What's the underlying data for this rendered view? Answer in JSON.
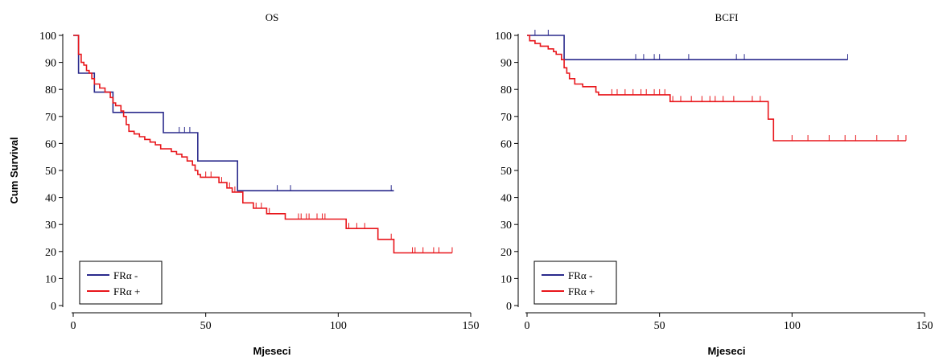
{
  "chart_data": [
    {
      "type": "line",
      "title": "OS",
      "xlabel": "Mjeseci",
      "ylabel": "Cum Survival",
      "xlim": [
        0,
        150
      ],
      "ylim": [
        0,
        100
      ],
      "x_ticks": [
        "0",
        "50",
        "100",
        "150"
      ],
      "y_ticks": [
        "0",
        "10",
        "20",
        "30",
        "40",
        "50",
        "60",
        "70",
        "80",
        "90",
        "100"
      ],
      "legend_position": "bottom-left",
      "series": [
        {
          "name": "FRα -",
          "color": "#2a2a8c",
          "points": [
            [
              0,
              100
            ],
            [
              2,
              100
            ],
            [
              2,
              86
            ],
            [
              8,
              86
            ],
            [
              8,
              79
            ],
            [
              15,
              79
            ],
            [
              15,
              71.5
            ],
            [
              34,
              71.5
            ],
            [
              34,
              64
            ],
            [
              47,
              64
            ],
            [
              47,
              53.5
            ],
            [
              62,
              53.5
            ],
            [
              62,
              42.5
            ],
            [
              121,
              42.5
            ]
          ],
          "censors": [
            [
              40,
              64
            ],
            [
              42,
              64
            ],
            [
              44,
              64
            ],
            [
              77,
              42.5
            ],
            [
              82,
              42.5
            ],
            [
              120,
              42.5
            ]
          ]
        },
        {
          "name": "FRα +",
          "color": "#e8161b",
          "points": [
            [
              0,
              100
            ],
            [
              2,
              100
            ],
            [
              2,
              93
            ],
            [
              3,
              93
            ],
            [
              3,
              90
            ],
            [
              4,
              90
            ],
            [
              4,
              89
            ],
            [
              5,
              89
            ],
            [
              5,
              87
            ],
            [
              6,
              87
            ],
            [
              6,
              86
            ],
            [
              7,
              86
            ],
            [
              7,
              84
            ],
            [
              8,
              84
            ],
            [
              8,
              82
            ],
            [
              10,
              82
            ],
            [
              10,
              80.5
            ],
            [
              12,
              80.5
            ],
            [
              12,
              79
            ],
            [
              14,
              79
            ],
            [
              14,
              77
            ],
            [
              15,
              77
            ],
            [
              15,
              75
            ],
            [
              16,
              75
            ],
            [
              16,
              74
            ],
            [
              18,
              74
            ],
            [
              18,
              72
            ],
            [
              19,
              72
            ],
            [
              19,
              70
            ],
            [
              20,
              70
            ],
            [
              20,
              67
            ],
            [
              21,
              67
            ],
            [
              21,
              64.5
            ],
            [
              23,
              64.5
            ],
            [
              23,
              63.5
            ],
            [
              25,
              63.5
            ],
            [
              25,
              62.5
            ],
            [
              27,
              62.5
            ],
            [
              27,
              61.5
            ],
            [
              29,
              61.5
            ],
            [
              29,
              60.5
            ],
            [
              31,
              60.5
            ],
            [
              31,
              59.5
            ],
            [
              33,
              59.5
            ],
            [
              33,
              58
            ],
            [
              37,
              58
            ],
            [
              37,
              57
            ],
            [
              39,
              57
            ],
            [
              39,
              56
            ],
            [
              41,
              56
            ],
            [
              41,
              55
            ],
            [
              43,
              55
            ],
            [
              43,
              53.5
            ],
            [
              45,
              53.5
            ],
            [
              45,
              52
            ],
            [
              46,
              52
            ],
            [
              46,
              50
            ],
            [
              47,
              50
            ],
            [
              47,
              48.5
            ],
            [
              48,
              48.5
            ],
            [
              48,
              47.5
            ],
            [
              55,
              47.5
            ],
            [
              55,
              45.5
            ],
            [
              58,
              45.5
            ],
            [
              58,
              43.5
            ],
            [
              60,
              43.5
            ],
            [
              60,
              42
            ],
            [
              64,
              42
            ],
            [
              64,
              38
            ],
            [
              68,
              38
            ],
            [
              68,
              36
            ],
            [
              73,
              36
            ],
            [
              73,
              34
            ],
            [
              80,
              34
            ],
            [
              80,
              32
            ],
            [
              103,
              32
            ],
            [
              103,
              28.5
            ],
            [
              115,
              28.5
            ],
            [
              115,
              24.5
            ],
            [
              121,
              24.5
            ],
            [
              121,
              19.5
            ],
            [
              143,
              19.5
            ]
          ],
          "censors": [
            [
              50,
              47.5
            ],
            [
              52,
              47.5
            ],
            [
              56,
              45.5
            ],
            [
              59,
              43.5
            ],
            [
              61,
              42
            ],
            [
              69,
              36
            ],
            [
              71,
              36
            ],
            [
              74,
              34
            ],
            [
              85,
              32
            ],
            [
              86,
              32
            ],
            [
              88,
              32
            ],
            [
              89,
              32
            ],
            [
              92,
              32
            ],
            [
              94,
              32
            ],
            [
              95,
              32
            ],
            [
              104,
              28.5
            ],
            [
              107,
              28.5
            ],
            [
              110,
              28.5
            ],
            [
              120,
              24.5
            ],
            [
              128,
              19.5
            ],
            [
              129,
              19.5
            ],
            [
              132,
              19.5
            ],
            [
              136,
              19.5
            ],
            [
              138,
              19.5
            ],
            [
              143,
              19.5
            ]
          ]
        }
      ]
    },
    {
      "type": "line",
      "title": "BCFI",
      "xlabel": "Mjeseci",
      "ylabel": "",
      "xlim": [
        0,
        150
      ],
      "ylim": [
        0,
        100
      ],
      "x_ticks": [
        "0",
        "50",
        "100",
        "150"
      ],
      "y_ticks": [
        "0",
        "10",
        "20",
        "30",
        "40",
        "50",
        "60",
        "70",
        "80",
        "90",
        "100"
      ],
      "legend_position": "bottom-left",
      "series": [
        {
          "name": "FRα -",
          "color": "#2a2a8c",
          "points": [
            [
              0,
              100
            ],
            [
              14,
              100
            ],
            [
              14,
              91
            ],
            [
              121,
              91
            ]
          ],
          "censors": [
            [
              3,
              100
            ],
            [
              8,
              100
            ],
            [
              41,
              91
            ],
            [
              44,
              91
            ],
            [
              48,
              91
            ],
            [
              50,
              91
            ],
            [
              61,
              91
            ],
            [
              79,
              91
            ],
            [
              82,
              91
            ],
            [
              121,
              91
            ]
          ]
        },
        {
          "name": "FRα +",
          "color": "#e8161b",
          "points": [
            [
              0,
              100
            ],
            [
              1,
              100
            ],
            [
              1,
              98
            ],
            [
              3,
              98
            ],
            [
              3,
              97
            ],
            [
              5,
              97
            ],
            [
              5,
              96
            ],
            [
              8,
              96
            ],
            [
              8,
              95
            ],
            [
              10,
              95
            ],
            [
              10,
              94
            ],
            [
              11,
              94
            ],
            [
              11,
              93
            ],
            [
              13,
              93
            ],
            [
              13,
              91
            ],
            [
              14,
              91
            ],
            [
              14,
              88
            ],
            [
              15,
              88
            ],
            [
              15,
              86
            ],
            [
              16,
              86
            ],
            [
              16,
              84
            ],
            [
              18,
              84
            ],
            [
              18,
              82
            ],
            [
              21,
              82
            ],
            [
              21,
              81
            ],
            [
              26,
              81
            ],
            [
              26,
              79
            ],
            [
              27,
              79
            ],
            [
              27,
              78
            ],
            [
              54,
              78
            ],
            [
              54,
              75.5
            ],
            [
              91,
              75.5
            ],
            [
              91,
              69
            ],
            [
              93,
              69
            ],
            [
              93,
              61
            ],
            [
              143,
              61
            ]
          ],
          "censors": [
            [
              32,
              78
            ],
            [
              34,
              78
            ],
            [
              37,
              78
            ],
            [
              40,
              78
            ],
            [
              43,
              78
            ],
            [
              45,
              78
            ],
            [
              48,
              78
            ],
            [
              50,
              78
            ],
            [
              52,
              78
            ],
            [
              55,
              75.5
            ],
            [
              58,
              75.5
            ],
            [
              62,
              75.5
            ],
            [
              66,
              75.5
            ],
            [
              69,
              75.5
            ],
            [
              71,
              75.5
            ],
            [
              74,
              75.5
            ],
            [
              78,
              75.5
            ],
            [
              85,
              75.5
            ],
            [
              88,
              75.5
            ],
            [
              100,
              61
            ],
            [
              106,
              61
            ],
            [
              114,
              61
            ],
            [
              120,
              61
            ],
            [
              124,
              61
            ],
            [
              132,
              61
            ],
            [
              140,
              61
            ],
            [
              143,
              61
            ]
          ]
        }
      ]
    }
  ]
}
